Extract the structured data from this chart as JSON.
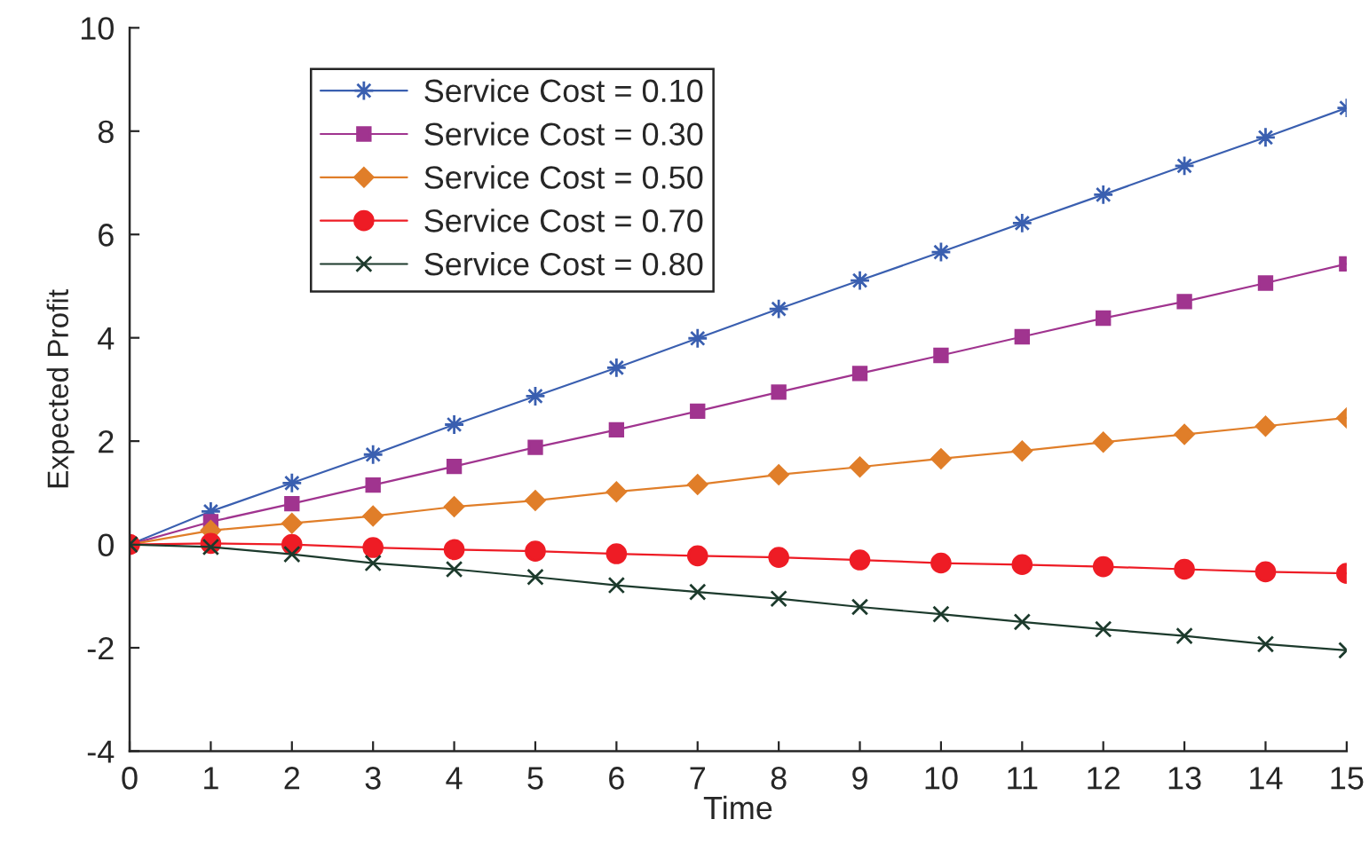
{
  "chart_data": {
    "type": "line",
    "xlabel": "Time",
    "ylabel": "Expected Profit",
    "x": [
      0,
      1,
      2,
      3,
      4,
      5,
      6,
      7,
      8,
      9,
      10,
      11,
      12,
      13,
      14,
      15
    ],
    "series": [
      {
        "name": "Service Cost = 0.10",
        "color": "#3a5fb0",
        "marker": "star",
        "values": [
          0,
          0.64,
          1.19,
          1.74,
          2.32,
          2.87,
          3.42,
          3.99,
          4.56,
          5.11,
          5.66,
          6.22,
          6.77,
          7.33,
          7.88,
          8.45
        ]
      },
      {
        "name": "Service Cost = 0.30",
        "color": "#a0348f",
        "marker": "square",
        "values": [
          0,
          0.44,
          0.79,
          1.15,
          1.51,
          1.88,
          2.22,
          2.58,
          2.95,
          3.31,
          3.66,
          4.02,
          4.38,
          4.7,
          5.06,
          5.43
        ]
      },
      {
        "name": "Service Cost = 0.50",
        "color": "#e07e29",
        "marker": "diamond",
        "values": [
          0,
          0.27,
          0.41,
          0.55,
          0.73,
          0.85,
          1.02,
          1.16,
          1.35,
          1.5,
          1.66,
          1.81,
          1.98,
          2.13,
          2.29,
          2.45
        ]
      },
      {
        "name": "Service Cost = 0.70",
        "color": "#ee1c25",
        "marker": "circle",
        "values": [
          0,
          0.02,
          0.0,
          -0.06,
          -0.1,
          -0.13,
          -0.18,
          -0.22,
          -0.25,
          -0.3,
          -0.36,
          -0.39,
          -0.43,
          -0.48,
          -0.53,
          -0.56
        ]
      },
      {
        "name": "Service Cost = 0.80",
        "color": "#1c3a2c",
        "marker": "cross",
        "values": [
          0,
          -0.05,
          -0.19,
          -0.36,
          -0.48,
          -0.63,
          -0.79,
          -0.92,
          -1.05,
          -1.21,
          -1.35,
          -1.5,
          -1.64,
          -1.77,
          -1.93,
          -2.05
        ]
      }
    ],
    "xlim": [
      0,
      15
    ],
    "xticks": [
      0,
      1,
      2,
      3,
      4,
      5,
      6,
      7,
      8,
      9,
      10,
      11,
      12,
      13,
      14,
      15
    ],
    "ylim": [
      -4,
      10
    ],
    "yticks": [
      -4,
      -2,
      0,
      2,
      4,
      6,
      8,
      10
    ],
    "line_style": "solid",
    "grid": false,
    "legend": "top left"
  }
}
